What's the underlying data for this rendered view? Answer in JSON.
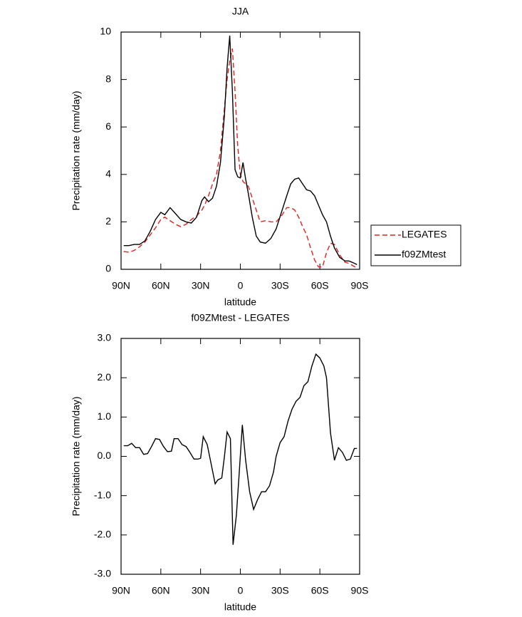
{
  "chart_data": [
    {
      "type": "line",
      "title": "JJA",
      "x_label": "latitude",
      "y_label": "Precipitation rate (mm/day)",
      "xlim": [
        90,
        -90
      ],
      "xticks": [
        {
          "value": 90,
          "label": "90N"
        },
        {
          "value": 60,
          "label": "60N"
        },
        {
          "value": 30,
          "label": "30N"
        },
        0,
        {
          "value": -30,
          "label": "30S"
        },
        {
          "value": -60,
          "label": "60S"
        },
        {
          "value": -90,
          "label": "90S"
        }
      ],
      "ylim": [
        0,
        10
      ],
      "yticks": [
        0,
        2,
        4,
        6,
        8,
        10
      ],
      "legend": "right",
      "x": [
        88,
        84,
        80,
        76,
        72,
        68,
        64,
        60,
        57,
        53,
        49,
        45,
        41,
        37,
        33,
        29,
        27,
        24,
        21,
        18,
        15,
        12,
        10,
        8,
        6,
        4,
        2,
        0,
        -2,
        -4,
        -6,
        -9,
        -12,
        -15,
        -19,
        -23,
        -27,
        -31,
        -35,
        -38,
        -41,
        -44,
        -47,
        -50,
        -53,
        -56,
        -59,
        -62,
        -65,
        -68,
        -71,
        -75,
        -79,
        -82,
        -85,
        -88
      ],
      "series": [
        {
          "name": "LEGATES",
          "color": "#e8201c",
          "dash": true,
          "values": [
            0.75,
            0.72,
            0.8,
            0.95,
            1.15,
            1.45,
            1.75,
            2.1,
            2.2,
            2.05,
            1.9,
            1.8,
            1.9,
            2.1,
            2.25,
            2.5,
            2.7,
            3.1,
            3.6,
            4.0,
            5.0,
            6.8,
            8.0,
            8.8,
            9.3,
            7.5,
            5.2,
            4.0,
            3.7,
            3.6,
            3.5,
            3.0,
            2.5,
            2.0,
            2.05,
            2.0,
            2.0,
            2.25,
            2.6,
            2.6,
            2.5,
            2.2,
            1.8,
            1.45,
            0.9,
            0.4,
            0.1,
            0.1,
            0.7,
            1.1,
            1.05,
            0.6,
            0.3,
            0.25,
            0.15,
            0.05
          ]
        },
        {
          "name": "f09ZMtest",
          "color": "#000000",
          "dash": false,
          "values": [
            1.0,
            1.0,
            1.05,
            1.05,
            1.2,
            1.6,
            2.1,
            2.4,
            2.3,
            2.6,
            2.35,
            2.1,
            2.0,
            1.95,
            2.2,
            2.9,
            3.05,
            2.85,
            3.0,
            3.5,
            4.5,
            6.5,
            8.5,
            9.85,
            7.5,
            4.2,
            3.9,
            3.85,
            4.5,
            3.8,
            3.2,
            2.2,
            1.4,
            1.15,
            1.1,
            1.3,
            1.7,
            2.4,
            3.1,
            3.6,
            3.8,
            3.85,
            3.6,
            3.35,
            3.3,
            3.1,
            2.7,
            2.3,
            2.0,
            1.4,
            0.9,
            0.5,
            0.35,
            0.35,
            0.28,
            0.2
          ]
        }
      ]
    },
    {
      "type": "line",
      "title": "f09ZMtest - LEGATES",
      "x_label": "latitude",
      "y_label": "Precipitation rate (mm/day)",
      "xlim": [
        90,
        -90
      ],
      "xticks": [
        {
          "value": 90,
          "label": "90N"
        },
        {
          "value": 60,
          "label": "60N"
        },
        {
          "value": 30,
          "label": "30N"
        },
        0,
        {
          "value": -30,
          "label": "30S"
        },
        {
          "value": -60,
          "label": "60S"
        },
        {
          "value": -90,
          "label": "90S"
        }
      ],
      "ylim": [
        -3,
        3
      ],
      "yticks": [
        {
          "value": -3,
          "label": "-3.0"
        },
        {
          "value": -2,
          "label": "-2.0"
        },
        {
          "value": -1,
          "label": "-1.0"
        },
        {
          "value": 0,
          "label": "0.0"
        },
        {
          "value": 1,
          "label": "1.0"
        },
        {
          "value": 2,
          "label": "2.0"
        },
        {
          "value": 3,
          "label": "3.0"
        }
      ],
      "x": [
        88,
        85,
        82,
        79,
        76,
        73,
        70,
        67,
        64,
        61,
        58,
        55,
        52,
        50,
        47,
        44,
        41,
        38,
        35,
        32,
        30,
        28,
        25,
        22,
        19,
        17,
        14,
        12,
        10,
        7.5,
        5.5,
        3,
        1,
        -1.5,
        -4,
        -7,
        -10,
        -13,
        -16,
        -19,
        -22,
        -25,
        -27,
        -30,
        -33,
        -36,
        -39,
        -42,
        -45,
        -48,
        -51,
        -54,
        -57,
        -60,
        -63,
        -65,
        -68,
        -71,
        -74,
        -77,
        -80,
        -83,
        -86,
        -88
      ],
      "series": [
        {
          "color": "#000000",
          "dash": false,
          "values": [
            0.27,
            0.27,
            0.33,
            0.22,
            0.22,
            0.05,
            0.07,
            0.25,
            0.45,
            0.43,
            0.25,
            0.12,
            0.13,
            0.45,
            0.45,
            0.3,
            0.25,
            0.1,
            -0.07,
            -0.07,
            -0.05,
            0.5,
            0.3,
            -0.2,
            -0.7,
            -0.6,
            -0.55,
            0,
            0.62,
            0.45,
            -2.25,
            -1.5,
            -0.5,
            0.8,
            -0.1,
            -0.9,
            -1.35,
            -1.1,
            -0.9,
            -0.9,
            -0.75,
            -0.4,
            0,
            0.35,
            0.5,
            0.9,
            1.2,
            1.4,
            1.5,
            1.8,
            1.9,
            2.3,
            2.6,
            2.5,
            2.3,
            2.0,
            0.6,
            -0.1,
            0.22,
            0.1,
            -0.1,
            -0.07,
            0.2,
            0.2
          ]
        }
      ]
    }
  ]
}
